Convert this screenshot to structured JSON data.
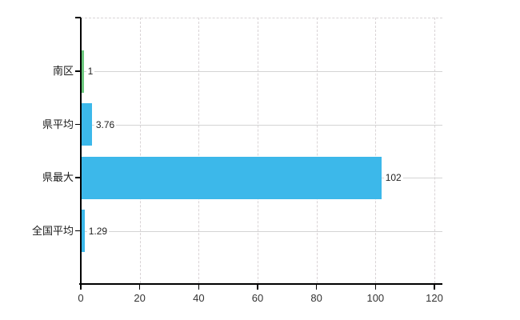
{
  "chart_data": {
    "type": "bar",
    "orientation": "horizontal",
    "title": "",
    "xlabel": "",
    "ylabel": "",
    "categories": [
      "南区",
      "県平均",
      "県最大",
      "全国平均"
    ],
    "values": [
      1,
      3.76,
      102,
      1.29
    ],
    "value_labels": [
      "1",
      "3.76",
      "102",
      "1.29"
    ],
    "bar_colors": [
      "#6cc87e",
      "#3cb8ea",
      "#3cb8ea",
      "#3cb8ea"
    ],
    "x_ticks": [
      "0",
      "20",
      "40",
      "60",
      "80",
      "100",
      "120"
    ],
    "xlim": [
      0,
      120
    ],
    "grid": {
      "vertical": "dashed",
      "horizontal": "solid row lines at category centers",
      "top_border": "dashed"
    },
    "legend": "none",
    "colors": {
      "axis": "#000000",
      "grid_dashed": "#d9d4d6",
      "grid_solid": "#d4d4d4",
      "tick_text": "#333333",
      "category_text": "#1a1a1a",
      "value_text": "#222222",
      "background": "#ffffff"
    }
  }
}
